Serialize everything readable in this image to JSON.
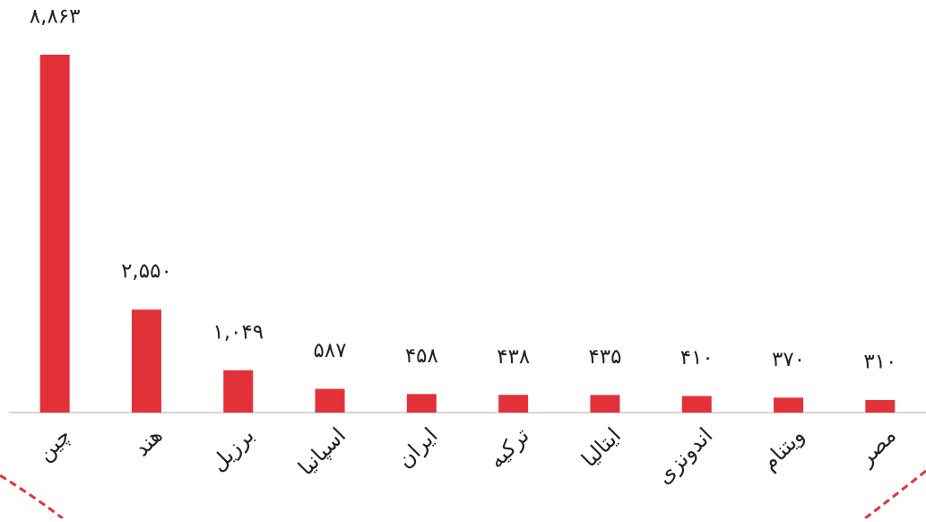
{
  "chart_data": {
    "type": "bar",
    "categories": [
      "چین",
      "هند",
      "برزیل",
      "اسپانیا",
      "ایران",
      "ترکیه",
      "ایتالیا",
      "اندونزی",
      "ویتنام",
      "مصر"
    ],
    "values": [
      8863,
      2550,
      1049,
      587,
      458,
      438,
      435,
      410,
      370,
      310
    ],
    "value_labels": [
      "۸,۸۶۳",
      "۲,۵۵۰",
      "۱,۰۴۹",
      "۵۸۷",
      "۴۵۸",
      "۴۳۸",
      "۴۳۵",
      "۴۱۰",
      "۳۷۰",
      "۳۱۰"
    ],
    "color": "#e3313a"
  }
}
